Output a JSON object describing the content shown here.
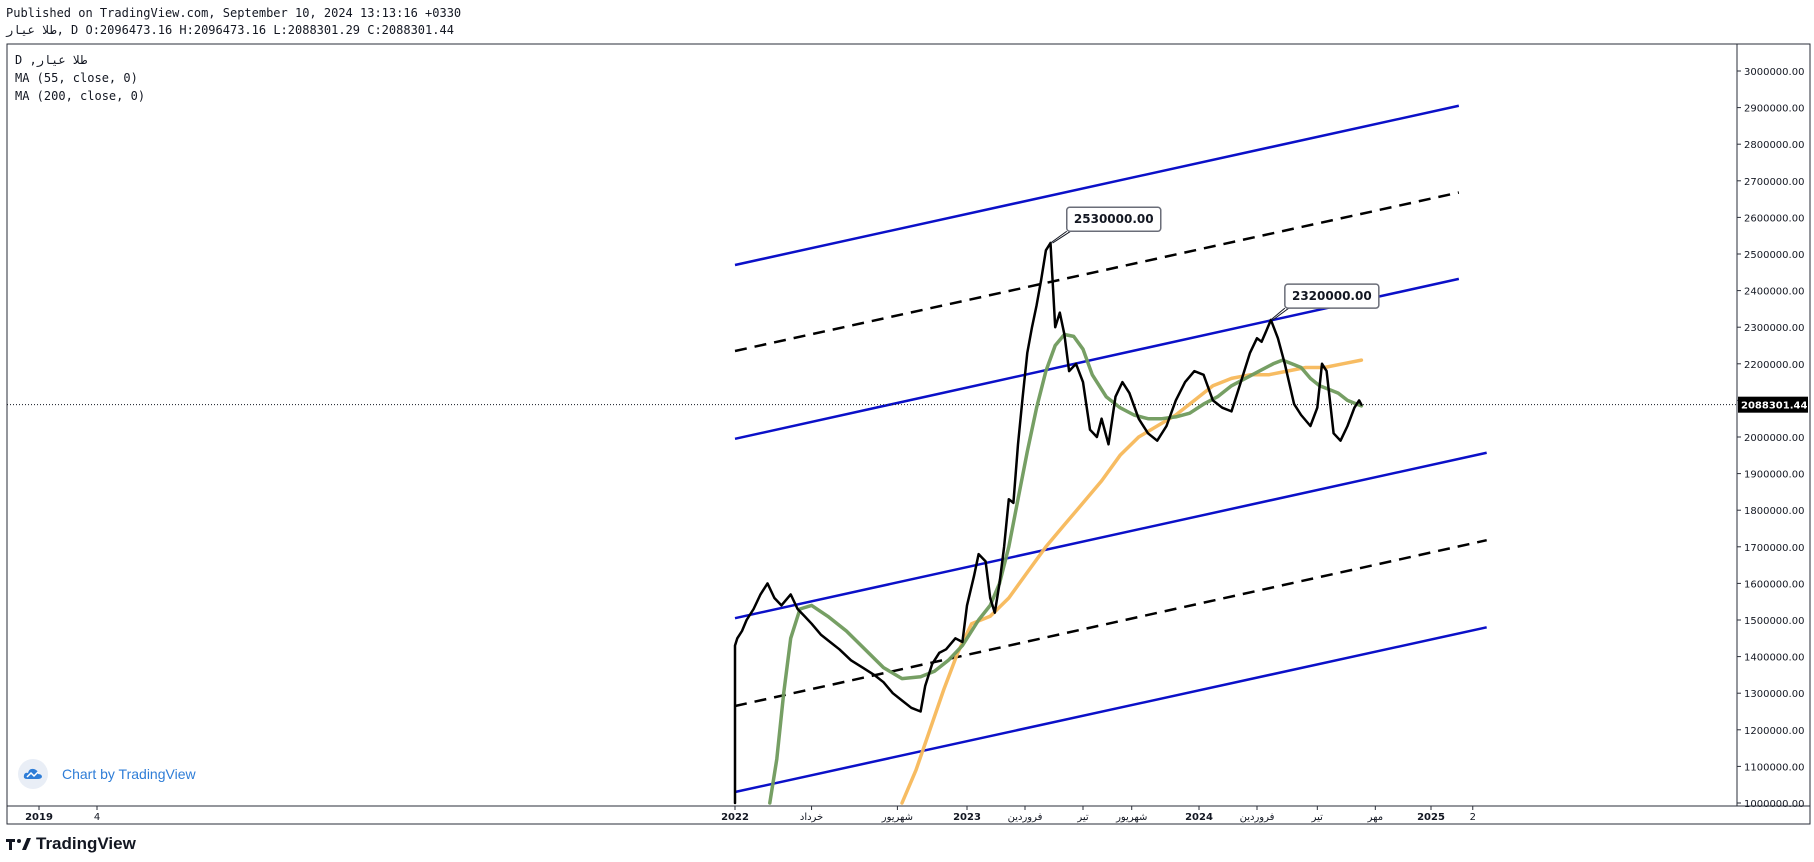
{
  "header": {
    "published": "Published on TradingView.com, September 10, 2024 13:13:16 +0330",
    "ohlc": "طلا عیار, D O:2096473.16 H:2096473.16 L:2088301.29 C:2088301.44"
  },
  "legend": {
    "symbol": "D ,طلا عیار",
    "ma55": "MA (55, close, 0)",
    "ma200": "MA (200, close, 0)"
  },
  "watermark": {
    "label": "Chart by TradingView"
  },
  "footer": {
    "brand": "TradingView"
  },
  "chart_data": {
    "type": "line",
    "colors": {
      "price": "#000000",
      "ma55": "#6f9a5c",
      "ma200": "#f7b85a",
      "channel": "#0b10c8",
      "midline": "#000000"
    },
    "x_time_range": [
      2018.96,
      2025.45
    ],
    "ylim": [
      1000000,
      3050000
    ],
    "y_ticks": [
      1000000,
      1100000,
      1200000,
      1300000,
      1400000,
      1500000,
      1600000,
      1700000,
      1800000,
      1900000,
      2000000,
      2100000,
      2200000,
      2300000,
      2400000,
      2500000,
      2600000,
      2700000,
      2800000,
      2900000,
      3000000
    ],
    "y_tick_labels": [
      "1000000.00",
      "1100000.00",
      "1200000.00",
      "1300000.00",
      "1400000.00",
      "1500000.00",
      "1600000.00",
      "1700000.00",
      "1800000.00",
      "1900000.00",
      "2000000.00",
      "2100000.00",
      "2200000.00",
      "2300000.00",
      "2400000.00",
      "2500000.00",
      "2600000.00",
      "2700000.00",
      "2800000.00",
      "2900000.00",
      "3000000.00"
    ],
    "x_ticks": [
      {
        "t": 2019.0,
        "label": "2019",
        "bold": true
      },
      {
        "t": 2019.25,
        "label": "4",
        "bold": false
      },
      {
        "t": 2022.0,
        "label": "2022",
        "bold": true
      },
      {
        "t": 2022.33,
        "label": "خرداد",
        "bold": false
      },
      {
        "t": 2022.7,
        "label": "شهریور",
        "bold": false
      },
      {
        "t": 2023.0,
        "label": "2023",
        "bold": true
      },
      {
        "t": 2023.25,
        "label": "فروردین",
        "bold": false
      },
      {
        "t": 2023.5,
        "label": "تیر",
        "bold": false
      },
      {
        "t": 2023.71,
        "label": "شهریور",
        "bold": false
      },
      {
        "t": 2024.0,
        "label": "2024",
        "bold": true
      },
      {
        "t": 2024.25,
        "label": "فروردین",
        "bold": false
      },
      {
        "t": 2024.51,
        "label": "تیر",
        "bold": false
      },
      {
        "t": 2024.76,
        "label": "مهر",
        "bold": false
      },
      {
        "t": 2025.0,
        "label": "2025",
        "bold": true
      },
      {
        "t": 2025.18,
        "label": "2",
        "bold": false
      }
    ],
    "last_price": 2088301.44,
    "last_price_label": "2088301.44",
    "annotations": [
      {
        "label": "2530000.00",
        "t": 2023.36,
        "y": 2530000,
        "box_t": 2023.43,
        "box_y": 2595000
      },
      {
        "label": "2320000.00",
        "t": 2024.31,
        "y": 2320000,
        "box_t": 2024.37,
        "box_y": 2385000
      }
    ],
    "channels": [
      {
        "name": "",
        "style": "solid",
        "t": [
          2022.0,
          2025.12
        ],
        "y": [
          2470000,
          2905000
        ]
      },
      {
        "name": "",
        "style": "dashed",
        "t": [
          2022.0,
          2025.12
        ],
        "y": [
          2235000,
          2668000
        ]
      },
      {
        "name": "",
        "style": "solid",
        "t": [
          2022.0,
          2025.12
        ],
        "y": [
          1995000,
          2432000
        ]
      },
      {
        "name": "",
        "style": "solid",
        "t": [
          2022.0,
          2025.24
        ],
        "y": [
          1505000,
          1957000
        ]
      },
      {
        "name": "",
        "style": "dashed",
        "t": [
          2022.0,
          2025.24
        ],
        "y": [
          1265000,
          1718000
        ]
      },
      {
        "name": "",
        "style": "solid",
        "t": [
          2022.0,
          2025.24
        ],
        "y": [
          1030000,
          1480000
        ]
      }
    ],
    "series": [
      {
        "name": "",
        "key": "price",
        "t": [
          2022.0,
          2022.0,
          2022.01,
          2022.03,
          2022.05,
          2022.08,
          2022.11,
          2022.14,
          2022.17,
          2022.2,
          2022.24,
          2022.27,
          2022.3,
          2022.33,
          2022.37,
          2022.41,
          2022.45,
          2022.5,
          2022.55,
          2022.6,
          2022.64,
          2022.68,
          2022.72,
          2022.76,
          2022.8,
          2022.82,
          2022.85,
          2022.88,
          2022.91,
          2022.95,
          2022.98,
          2023.0,
          2023.03,
          2023.05,
          2023.08,
          2023.1,
          2023.12,
          2023.14,
          2023.16,
          2023.18,
          2023.2,
          2023.22,
          2023.24,
          2023.26,
          2023.28,
          2023.3,
          2023.32,
          2023.34,
          2023.36,
          2023.38,
          2023.4,
          2023.42,
          2023.44,
          2023.47,
          2023.5,
          2023.53,
          2023.56,
          2023.58,
          2023.61,
          2023.64,
          2023.67,
          2023.7,
          2023.74,
          2023.78,
          2023.82,
          2023.86,
          2023.9,
          2023.94,
          2023.98,
          2024.02,
          2024.06,
          2024.1,
          2024.14,
          2024.18,
          2024.22,
          2024.25,
          2024.27,
          2024.29,
          2024.31,
          2024.34,
          2024.37,
          2024.41,
          2024.44,
          2024.48,
          2024.51,
          2024.53,
          2024.55,
          2024.58,
          2024.61,
          2024.64,
          2024.67,
          2024.69,
          2024.7
        ],
        "y": [
          1000000,
          1430000,
          1450000,
          1470000,
          1500000,
          1530000,
          1570000,
          1600000,
          1560000,
          1540000,
          1570000,
          1530000,
          1510000,
          1490000,
          1460000,
          1440000,
          1420000,
          1390000,
          1370000,
          1350000,
          1330000,
          1300000,
          1280000,
          1260000,
          1250000,
          1320000,
          1380000,
          1410000,
          1420000,
          1450000,
          1440000,
          1540000,
          1620000,
          1680000,
          1660000,
          1560000,
          1520000,
          1600000,
          1700000,
          1830000,
          1820000,
          1980000,
          2110000,
          2230000,
          2300000,
          2360000,
          2430000,
          2510000,
          2530000,
          2300000,
          2340000,
          2280000,
          2180000,
          2200000,
          2150000,
          2020000,
          2000000,
          2050000,
          1980000,
          2110000,
          2150000,
          2120000,
          2050000,
          2010000,
          1990000,
          2030000,
          2100000,
          2150000,
          2180000,
          2170000,
          2100000,
          2080000,
          2070000,
          2150000,
          2230000,
          2270000,
          2260000,
          2290000,
          2320000,
          2270000,
          2200000,
          2090000,
          2060000,
          2030000,
          2080000,
          2200000,
          2180000,
          2010000,
          1990000,
          2030000,
          2080000,
          2100000,
          2088301
        ]
      },
      {
        "name": "",
        "key": "ma55",
        "t": [
          2022.15,
          2022.18,
          2022.21,
          2022.24,
          2022.28,
          2022.33,
          2022.4,
          2022.48,
          2022.56,
          2022.64,
          2022.72,
          2022.8,
          2022.86,
          2022.92,
          2022.98,
          2023.05,
          2023.1,
          2023.14,
          2023.18,
          2023.22,
          2023.26,
          2023.3,
          2023.34,
          2023.38,
          2023.42,
          2023.46,
          2023.5,
          2023.54,
          2023.6,
          2023.66,
          2023.72,
          2023.78,
          2023.84,
          2023.9,
          2023.96,
          2024.02,
          2024.08,
          2024.14,
          2024.2,
          2024.26,
          2024.32,
          2024.36,
          2024.4,
          2024.44,
          2024.48,
          2024.52,
          2024.56,
          2024.6,
          2024.64,
          2024.68,
          2024.7
        ],
        "y": [
          1000000,
          1120000,
          1300000,
          1450000,
          1530000,
          1540000,
          1510000,
          1470000,
          1420000,
          1370000,
          1340000,
          1345000,
          1360000,
          1390000,
          1430000,
          1500000,
          1540000,
          1600000,
          1700000,
          1830000,
          1960000,
          2080000,
          2180000,
          2250000,
          2280000,
          2275000,
          2240000,
          2170000,
          2110000,
          2080000,
          2060000,
          2050000,
          2050000,
          2055000,
          2065000,
          2090000,
          2110000,
          2140000,
          2160000,
          2180000,
          2200000,
          2210000,
          2200000,
          2190000,
          2160000,
          2140000,
          2130000,
          2120000,
          2100000,
          2090000,
          2085000
        ]
      },
      {
        "name": "",
        "key": "ma200",
        "t": [
          2022.72,
          2022.78,
          2022.84,
          2022.9,
          2022.96,
          2023.02,
          2023.1,
          2023.18,
          2023.26,
          2023.34,
          2023.42,
          2023.5,
          2023.58,
          2023.66,
          2023.74,
          2023.82,
          2023.9,
          2023.98,
          2024.06,
          2024.14,
          2024.22,
          2024.3,
          2024.38,
          2024.46,
          2024.54,
          2024.62,
          2024.7
        ],
        "y": [
          1000000,
          1090000,
          1200000,
          1310000,
          1410000,
          1490000,
          1510000,
          1560000,
          1630000,
          1700000,
          1760000,
          1820000,
          1880000,
          1950000,
          2000000,
          2030000,
          2060000,
          2100000,
          2140000,
          2160000,
          2170000,
          2170000,
          2180000,
          2190000,
          2190000,
          2200000,
          2210000
        ]
      }
    ]
  }
}
